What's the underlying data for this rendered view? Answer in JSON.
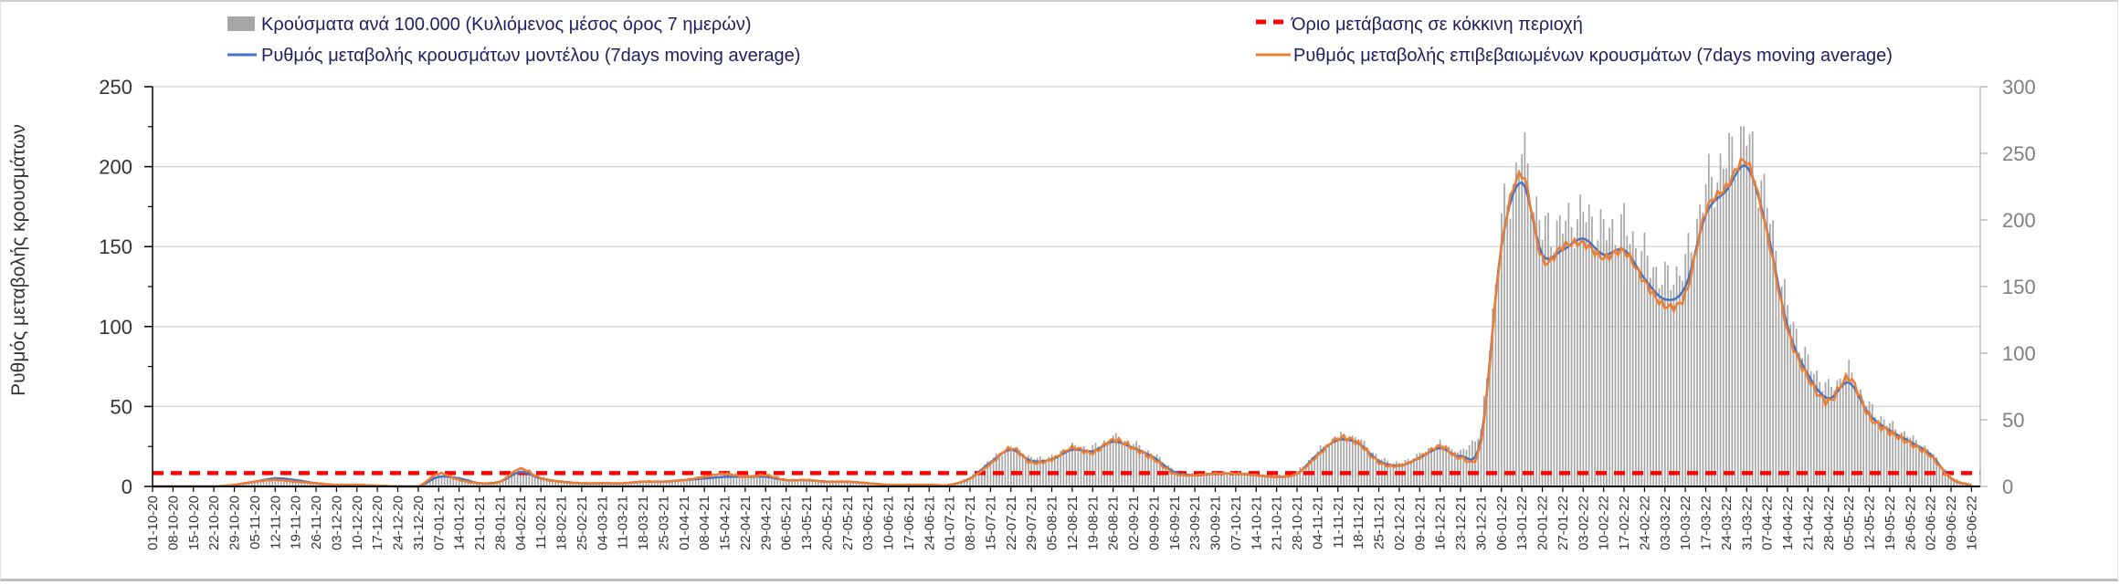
{
  "chart_data": {
    "type": "bar+line",
    "title": "",
    "ylabel": "Ρυθμός μεταβολής κρουσμάτων",
    "ylim_left": [
      0,
      250
    ],
    "yticks_left": [
      0,
      50,
      100,
      150,
      200,
      250
    ],
    "ylim_right": [
      0,
      300
    ],
    "yticks_right": [
      0,
      50,
      100,
      150,
      200,
      250,
      300
    ],
    "grid": true,
    "legend": [
      {
        "label": "Κρούσματα ανά 100.000 (Κυλιόμενος μέσος όρος 7 ημερών)",
        "kind": "bar",
        "color": "#a6a6a6"
      },
      {
        "label": "Όριο μετάβασης σε κόκκινη περιοχή",
        "kind": "dashed",
        "color": "#ff0000"
      },
      {
        "label": "Ρυθμός μεταβολής κρουσμάτων μοντέλου (7days moving average)",
        "kind": "line",
        "color": "#4472c4"
      },
      {
        "label": "Ρυθμός μεταβολής επιβεβαιωμένων κρουσμάτων (7days moving average)",
        "kind": "line",
        "color": "#ed7d31"
      }
    ],
    "legend_placement": "top",
    "categories": [
      "01-10-20",
      "08-10-20",
      "15-10-20",
      "22-10-20",
      "29-10-20",
      "05-11-20",
      "12-11-20",
      "19-11-20",
      "26-11-20",
      "03-12-20",
      "10-12-20",
      "17-12-20",
      "24-12-20",
      "31-12-20",
      "07-01-21",
      "14-01-21",
      "21-01-21",
      "28-01-21",
      "04-02-21",
      "11-02-21",
      "18-02-21",
      "25-02-21",
      "04-03-21",
      "11-03-21",
      "18-03-21",
      "25-03-21",
      "01-04-21",
      "08-04-21",
      "15-04-21",
      "22-04-21",
      "29-04-21",
      "06-05-21",
      "13-05-21",
      "20-05-21",
      "27-05-21",
      "03-06-21",
      "10-06-21",
      "17-06-21",
      "24-06-21",
      "01-07-21",
      "08-07-21",
      "15-07-21",
      "22-07-21",
      "29-07-21",
      "05-08-21",
      "12-08-21",
      "19-08-21",
      "26-08-21",
      "02-09-21",
      "09-09-21",
      "16-09-21",
      "23-09-21",
      "30-09-21",
      "07-10-21",
      "14-10-21",
      "21-10-21",
      "28-10-21",
      "04-11-21",
      "11-11-21",
      "18-11-21",
      "25-11-21",
      "02-12-21",
      "09-12-21",
      "16-12-21",
      "23-12-21",
      "30-12-21",
      "06-01-22",
      "13-01-22",
      "20-01-22",
      "27-01-22",
      "03-02-22",
      "10-02-22",
      "17-02-22",
      "24-02-22",
      "03-03-22",
      "10-03-22",
      "17-03-22",
      "24-03-22",
      "31-03-22",
      "07-04-22",
      "14-04-22",
      "21-04-22",
      "28-04-22",
      "05-05-22",
      "12-05-22",
      "19-05-22",
      "26-05-22",
      "02-06-22",
      "09-06-22",
      "16-06-22"
    ],
    "series": [
      {
        "name": "Κρούσματα ανά 100.000 (Κυλιόμενος μέσος όρος 7 ημερών)",
        "axis": "right",
        "type": "bar",
        "values": [
          0,
          0,
          0,
          0,
          1,
          4,
          7,
          5,
          3,
          1,
          1,
          1,
          0,
          0,
          8,
          7,
          3,
          4,
          12,
          7,
          4,
          3,
          3,
          3,
          4,
          4,
          5,
          7,
          8,
          8,
          8,
          5,
          5,
          4,
          4,
          3,
          1,
          1,
          1,
          1,
          7,
          20,
          30,
          21,
          22,
          30,
          29,
          37,
          32,
          24,
          12,
          9,
          11,
          11,
          9,
          8,
          11,
          26,
          38,
          36,
          21,
          17,
          24,
          32,
          25,
          40,
          198,
          251,
          191,
          195,
          205,
          191,
          195,
          172,
          154,
          165,
          224,
          244,
          264,
          211,
          132,
          92,
          73,
          86,
          59,
          46,
          37,
          26,
          7,
          1
        ]
      },
      {
        "name": "Ρυθμός μεταβολής κρουσμάτων μοντέλου (7days moving average)",
        "axis": "left",
        "type": "line",
        "values": [
          0,
          0,
          0,
          0,
          1,
          3,
          5,
          4,
          2,
          1,
          1,
          0.5,
          0,
          0,
          6,
          5,
          2,
          3,
          9,
          5,
          3,
          2,
          2,
          2,
          3,
          3,
          4,
          5,
          6,
          6,
          6,
          4,
          4,
          3,
          3,
          2,
          1,
          1,
          1,
          1,
          5,
          15,
          23,
          16,
          17,
          23,
          22,
          28,
          24,
          18,
          9,
          7,
          8,
          8,
          7,
          6,
          8,
          20,
          29,
          27,
          16,
          13,
          18,
          24,
          19,
          30,
          150,
          190,
          145,
          148,
          155,
          145,
          148,
          130,
          117,
          125,
          170,
          185,
          200,
          160,
          100,
          70,
          55,
          65,
          45,
          35,
          28,
          20,
          5,
          1
        ]
      },
      {
        "name": "Ρυθμός μεταβολής επιβεβαιωμένων κρουσμάτων (7days moving average)",
        "axis": "left",
        "type": "line",
        "values": [
          0,
          0,
          0,
          0,
          1,
          3,
          4,
          3,
          2,
          1,
          1,
          0.5,
          0,
          0,
          8,
          4,
          2,
          3,
          11,
          5,
          3,
          2,
          2,
          2,
          3,
          3,
          4,
          6,
          8,
          6,
          7,
          4,
          4,
          3,
          3,
          2,
          1,
          1,
          1,
          1,
          5,
          14,
          24,
          15,
          17,
          24,
          21,
          29,
          24,
          17,
          8,
          7,
          8,
          8,
          7,
          6,
          8,
          19,
          30,
          27,
          15,
          13,
          18,
          25,
          18,
          28,
          150,
          195,
          142,
          150,
          152,
          143,
          147,
          128,
          113,
          120,
          172,
          187,
          203,
          158,
          98,
          68,
          53,
          68,
          44,
          34,
          27,
          19,
          5,
          1
        ]
      },
      {
        "name": "Όριο μετάβασης σε κόκκινη περιοχή",
        "axis": "right",
        "type": "dashed-line",
        "value": 10
      }
    ]
  }
}
